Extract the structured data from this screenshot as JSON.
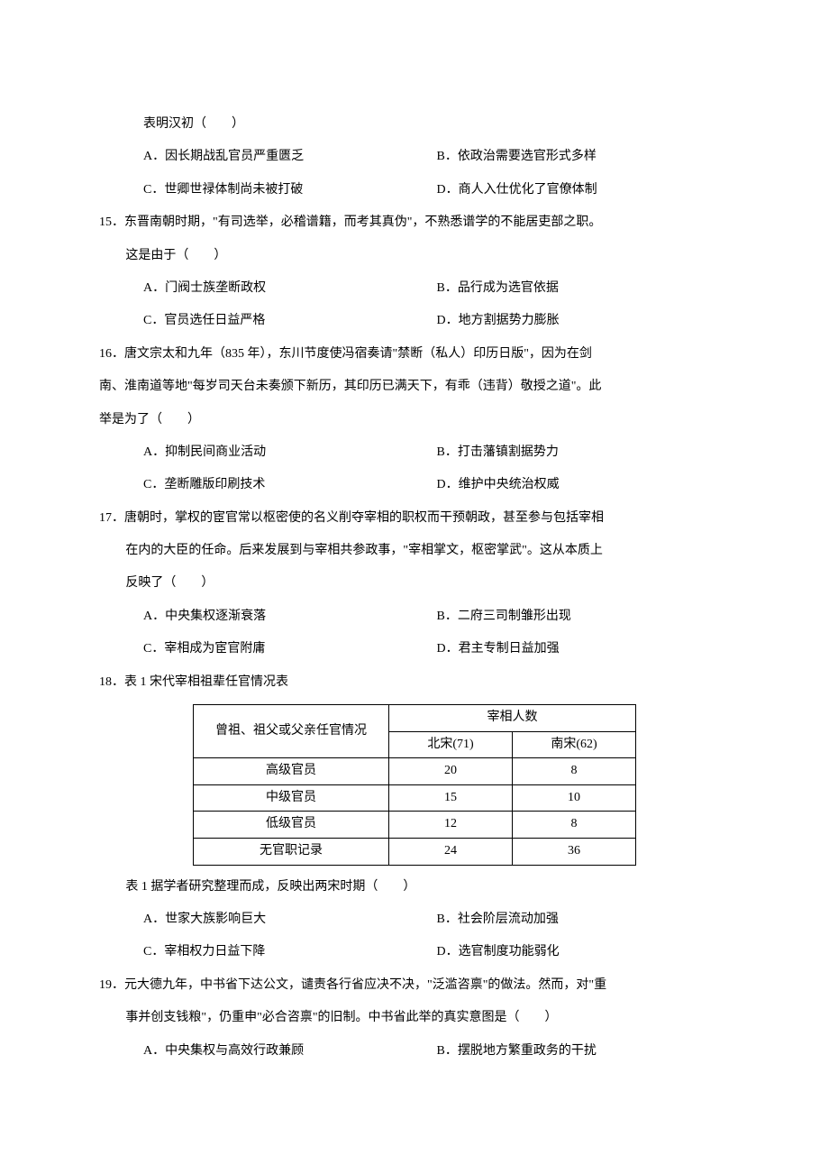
{
  "q14": {
    "trail": "表明汉初（　　）",
    "opts": {
      "A": "A．因长期战乱官员严重匮乏",
      "B": "B．依政治需要选官形式多样",
      "C": "C．世卿世禄体制尚未被打破",
      "D": "D．商人入仕优化了官僚体制"
    }
  },
  "q15": {
    "num": "15．",
    "stem1": "东晋南朝时期，\"有司选举，必稽谱籍，而考其真伪\"，不熟悉谱学的不能居吏部之职。",
    "stem2": "这是由于（　　）",
    "opts": {
      "A": "A．门阀士族垄断政权",
      "B": "B．品行成为选官依据",
      "C": "C．官员选任日益严格",
      "D": "D．地方割据势力膨胀"
    }
  },
  "q16": {
    "num": "16．",
    "stem1": "唐文宗太和九年（835 年），东川节度使冯宿奏请\"禁断（私人）印历日版\"，因为在剑",
    "stem2": "南、淮南道等地\"每岁司天台未奏颁下新历，其印历已满天下，有乖（违背）敬授之道\"。此",
    "stem3": "举是为了（　　）",
    "opts": {
      "A": "A．抑制民间商业活动",
      "B": "B．打击藩镇割据势力",
      "C": "C．垄断雕版印刷技术",
      "D": "D．维护中央统治权威"
    }
  },
  "q17": {
    "num": "17．",
    "stem1": "唐朝时，掌权的宦官常以枢密使的名义削夺宰相的职权而干预朝政，甚至参与包括宰相",
    "stem2": "在内的大臣的任命。后来发展到与宰相共参政事，\"宰相掌文，枢密掌武\"。这从本质上",
    "stem3": "反映了（　　）",
    "opts": {
      "A": "A．中央集权逐渐衰落",
      "B": "B．二府三司制雏形出现",
      "C": "C．宰相成为宦官附庸",
      "D": "D．君主专制日益加强"
    }
  },
  "q18": {
    "num": "18．",
    "caption": "表 1 宋代宰相祖辈任官情况表",
    "tablecaption_after": "表 1 据学者研究整理而成，反映出两宋时期（　　）",
    "header": {
      "col1": "曾祖、祖父或父亲任官情况",
      "col2": "宰相人数",
      "sub_a": "北宋(71)",
      "sub_b": "南宋(62)"
    },
    "rows": [
      {
        "label": "高级官员",
        "bs": "20",
        "ns": "8"
      },
      {
        "label": "中级官员",
        "bs": "15",
        "ns": "10"
      },
      {
        "label": "低级官员",
        "bs": "12",
        "ns": "8"
      },
      {
        "label": "无官职记录",
        "bs": "24",
        "ns": "36"
      }
    ],
    "opts": {
      "A": "A．世家大族影响巨大",
      "B": "B．社会阶层流动加强",
      "C": "C．宰相权力日益下降",
      "D": "D．选官制度功能弱化"
    }
  },
  "q19": {
    "num": "19．",
    "stem1": "元大德九年，中书省下达公文，谴责各行省应决不决，\"泛滥咨禀\"的做法。然而，对\"重",
    "stem2": "事并创支钱粮\"，仍重申\"必合咨禀\"的旧制。中书省此举的真实意图是（　　）",
    "opts": {
      "A": "A．中央集权与高效行政兼顾",
      "B": "B．摆脱地方繁重政务的干扰"
    }
  }
}
